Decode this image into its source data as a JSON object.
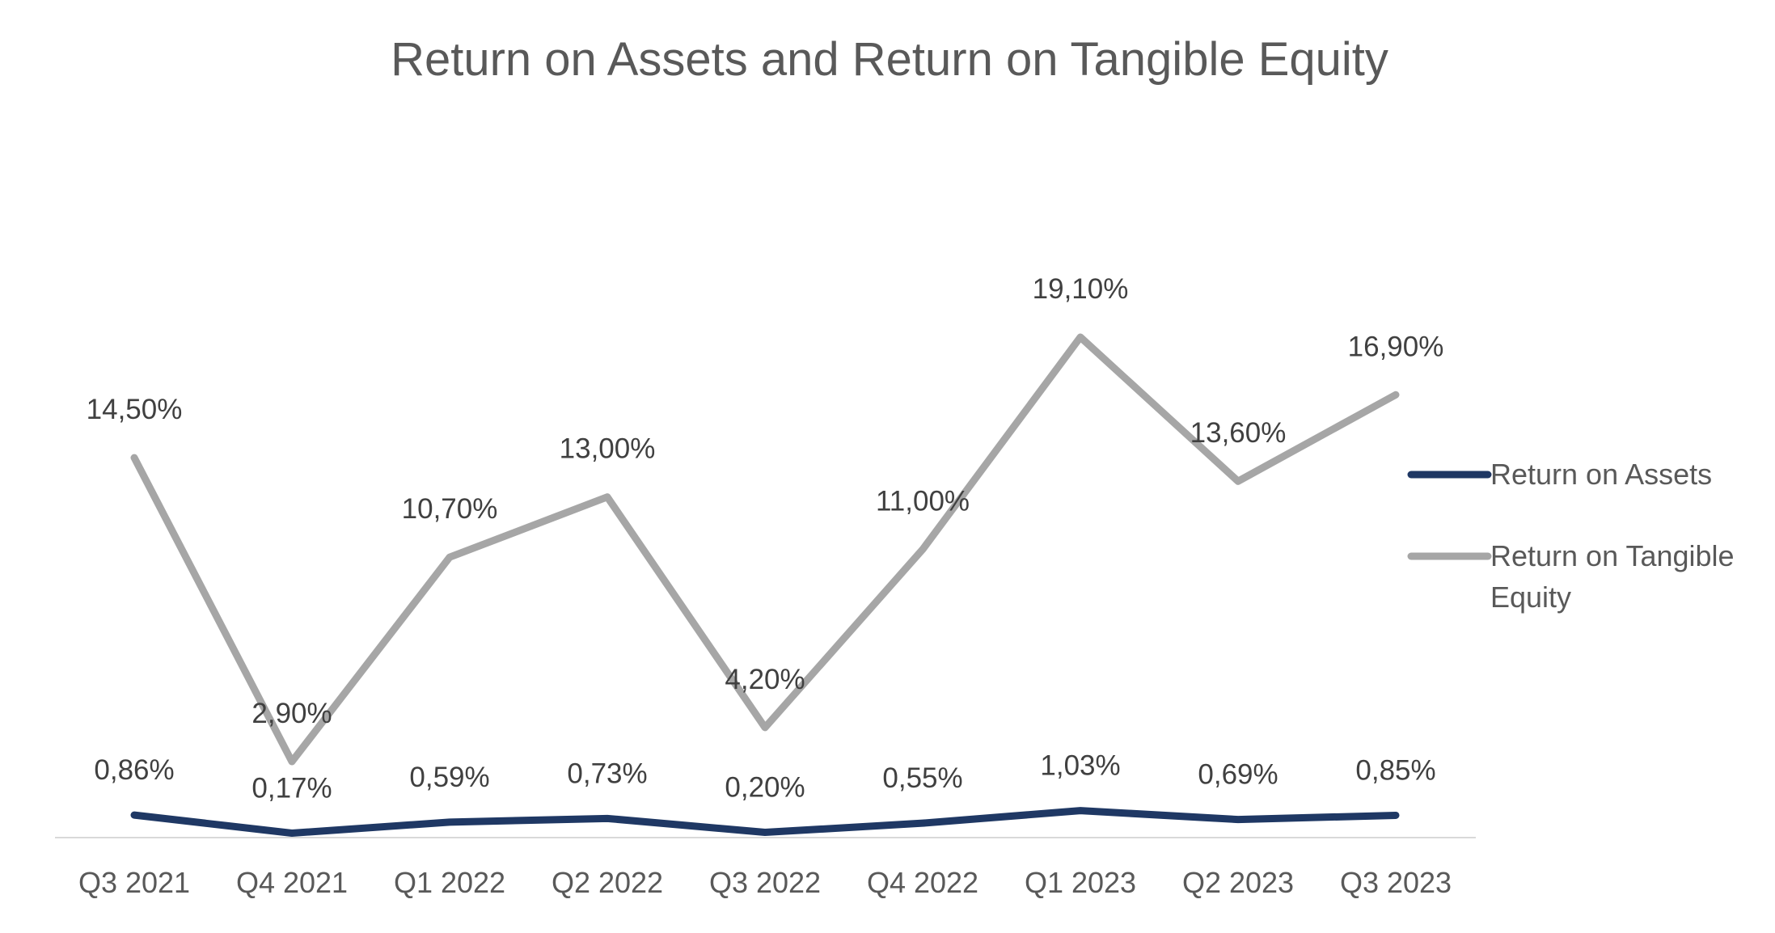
{
  "chart_data": {
    "type": "line",
    "title": "Return on Assets and Return on Tangible Equity",
    "categories": [
      "Q3 2021",
      "Q4 2021",
      "Q1 2022",
      "Q2 2022",
      "Q3 2022",
      "Q4 2022",
      "Q1 2023",
      "Q2 2023",
      "Q3 2023"
    ],
    "series": [
      {
        "name": "Return on Assets",
        "color": "#1f3864",
        "values": [
          0.86,
          0.17,
          0.59,
          0.73,
          0.2,
          0.55,
          1.03,
          0.69,
          0.85
        ],
        "labels": [
          "0,86%",
          "0,17%",
          "0,59%",
          "0,73%",
          "0,20%",
          "0,55%",
          "1,03%",
          "0,69%",
          "0,85%"
        ]
      },
      {
        "name": "Return on Tangible Equity",
        "color": "#a6a6a6",
        "values": [
          14.5,
          2.9,
          10.7,
          13.0,
          4.2,
          11.0,
          19.1,
          13.6,
          16.9
        ],
        "labels": [
          "14,50%",
          "2,90%",
          "10,70%",
          "13,00%",
          "4,20%",
          "11,00%",
          "19,10%",
          "13,60%",
          "16,90%"
        ]
      }
    ],
    "legend": {
      "position": "right",
      "entries": [
        "Return on Assets",
        "Return on Tangible",
        "Equity"
      ]
    },
    "grid": false,
    "ylim": [
      0,
      19.1
    ]
  }
}
